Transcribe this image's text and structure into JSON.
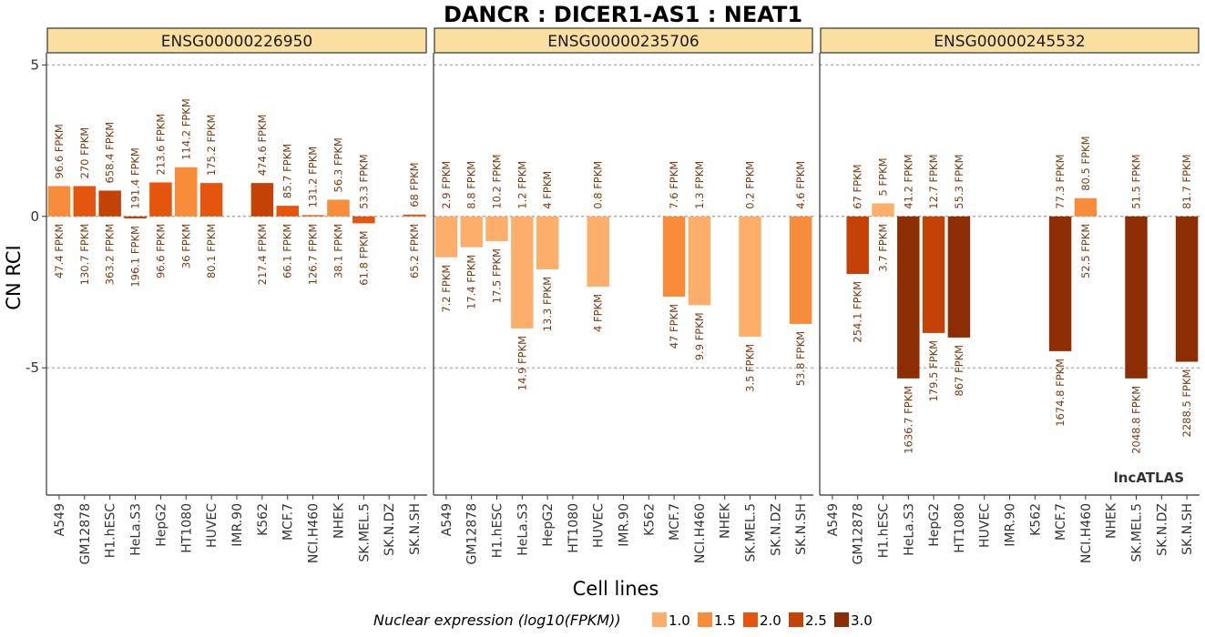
{
  "chart_data": {
    "type": "bar",
    "title": "DANCR : DICER1-AS1 : NEAT1",
    "xlabel": "Cell lines",
    "ylabel": "CN RCI",
    "ylim": [
      -9.2,
      5.4
    ],
    "yticks": [
      5,
      0,
      -5
    ],
    "ytick_labels": [
      "5",
      "0",
      "-5"
    ],
    "grid_lines": [
      5,
      0,
      -5
    ],
    "categories": [
      "A549",
      "GM12878",
      "H1.hESC",
      "HeLa.S3",
      "HepG2",
      "HT1080",
      "HUVEC",
      "IMR.90",
      "K562",
      "MCF.7",
      "NCI.H460",
      "NHEK",
      "SK.MEL.5",
      "SK.N.DZ",
      "SK.N.SH"
    ],
    "panels": [
      {
        "name": "ENSG00000226950",
        "values": [
          1.0,
          1.0,
          0.85,
          -0.07,
          1.12,
          1.62,
          1.1,
          null,
          1.1,
          0.35,
          0.04,
          0.55,
          -0.23,
          null,
          0.06
        ],
        "nuclear_log10_fpkm": [
          1.68,
          2.12,
          2.56,
          2.29,
          1.98,
          1.56,
          1.9,
          null,
          2.34,
          1.82,
          2.1,
          1.58,
          1.79,
          null,
          1.81
        ],
        "top_labels": [
          "96.6 FPKM",
          "270 FPKM",
          "658.4 FPKM",
          "191.4 FPKM",
          "213.6 FPKM",
          "114.2 FPKM",
          "175.2 FPKM",
          "",
          "474.6 FPKM",
          "85.7 FPKM",
          "131.2 FPKM",
          "56.3 FPKM",
          "53.3 FPKM",
          "",
          "68 FPKM"
        ],
        "bottom_labels": [
          "47.4 FPKM",
          "130.7 FPKM",
          "363.2 FPKM",
          "196.1 FPKM",
          "96.6 FPKM",
          "36 FPKM",
          "80.1 FPKM",
          "",
          "217.4 FPKM",
          "66.1 FPKM",
          "126.7 FPKM",
          "38.1 FPKM",
          "61.8 FPKM",
          "",
          "65.2 FPKM"
        ]
      },
      {
        "name": "ENSG00000235706",
        "values": [
          -1.35,
          -1.02,
          -0.82,
          -3.7,
          -1.75,
          null,
          -2.32,
          null,
          null,
          -2.65,
          -2.93,
          null,
          -3.97,
          null,
          -3.55
        ],
        "nuclear_log10_fpkm": [
          0.86,
          1.24,
          1.24,
          1.17,
          1.12,
          null,
          0.6,
          null,
          null,
          1.67,
          1.0,
          null,
          0.54,
          null,
          1.73
        ],
        "top_labels": [
          "2.9 FPKM",
          "8.8 FPKM",
          "10.2 FPKM",
          "1.2 FPKM",
          "4 FPKM",
          "",
          "0.8 FPKM",
          "",
          "",
          "7.6 FPKM",
          "1.3 FPKM",
          "",
          "0.2 FPKM",
          "",
          "4.6 FPKM"
        ],
        "bottom_labels": [
          "7.2 FPKM",
          "17.4 FPKM",
          "17.5 FPKM",
          "14.9 FPKM",
          "13.3 FPKM",
          "",
          "4 FPKM",
          "",
          "",
          "47 FPKM",
          "9.9 FPKM",
          "",
          "3.5 FPKM",
          "",
          "53.8 FPKM"
        ]
      },
      {
        "name": "ENSG00000245532",
        "values": [
          null,
          -1.9,
          0.43,
          -5.35,
          -3.85,
          -4.0,
          null,
          null,
          null,
          -4.45,
          0.6,
          null,
          -5.35,
          null,
          -4.8
        ],
        "nuclear_log10_fpkm": [
          null,
          2.41,
          0.57,
          3.21,
          2.25,
          2.94,
          null,
          null,
          null,
          3.22,
          1.72,
          null,
          3.31,
          null,
          3.36
        ],
        "top_labels": [
          "",
          "67 FPKM",
          "5 FPKM",
          "41.2 FPKM",
          "12.7 FPKM",
          "55.3 FPKM",
          "",
          "",
          "",
          "77.3 FPKM",
          "80.5 FPKM",
          "",
          "51.5 FPKM",
          "",
          "81.7 FPKM"
        ],
        "bottom_labels": [
          "",
          "254.1 FPKM",
          "3.7 FPKM",
          "1636.7 FPKM",
          "179.5 FPKM",
          "867 FPKM",
          "",
          "",
          "",
          "1674.8 FPKM",
          "52.5 FPKM",
          "",
          "2048.8 FPKM",
          "",
          "2288.5 FPKM"
        ]
      }
    ],
    "legend": {
      "title": "Nuclear expression (log10(FPKM))",
      "position": "bottom",
      "items": [
        {
          "label": "1.0",
          "color": "#fdae6b"
        },
        {
          "label": "1.5",
          "color": "#f98c3a"
        },
        {
          "label": "2.0",
          "color": "#e6550d"
        },
        {
          "label": "2.5",
          "color": "#c44206"
        },
        {
          "label": "3.0",
          "color": "#8c2d04"
        }
      ]
    },
    "watermark": "lncATLAS"
  },
  "colors": {
    "strip_fill": "#fbdfa0",
    "strip_border": "#333333",
    "bar_scale": [
      "#fdae6b",
      "#f98c3a",
      "#e6550d",
      "#c44206",
      "#8c2d04"
    ],
    "value_label": "#7a3b12"
  }
}
